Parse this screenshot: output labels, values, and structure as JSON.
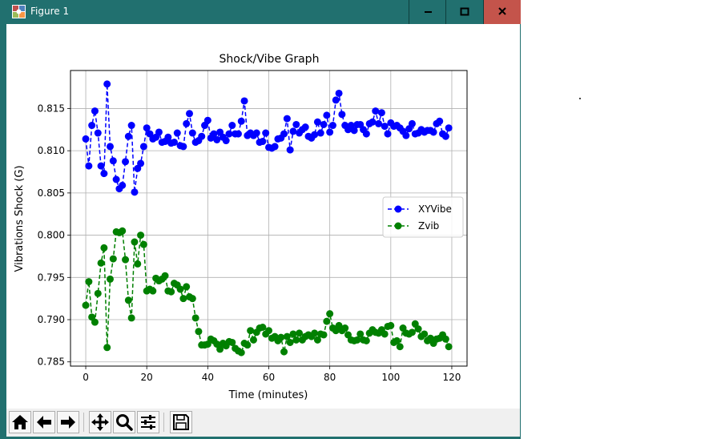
{
  "window": {
    "title": "Figure 1",
    "icon": "matplotlib-figure-icon",
    "controls": [
      "minimize-icon",
      "maximize-icon",
      "close-icon"
    ]
  },
  "toolbar": {
    "buttons": [
      {
        "name": "home-button",
        "icon": "home-icon"
      },
      {
        "name": "back-button",
        "icon": "arrow-left-icon"
      },
      {
        "name": "forward-button",
        "icon": "arrow-right-icon"
      },
      {
        "name": "pan-button",
        "icon": "move-icon"
      },
      {
        "name": "zoom-button",
        "icon": "magnifier-icon"
      },
      {
        "name": "configure-subplots-button",
        "icon": "sliders-icon"
      },
      {
        "name": "save-button",
        "icon": "floppy-disk-icon"
      }
    ]
  },
  "chart_data": {
    "type": "line",
    "title": "Shock/Vibe Graph",
    "xlabel": "Time (minutes)",
    "ylabel": "Vibrations Shock (G)",
    "xlim": [
      -5,
      125
    ],
    "ylim": [
      0.7845,
      0.8195
    ],
    "xticks": [
      "0",
      "20",
      "40",
      "60",
      "80",
      "100",
      "120"
    ],
    "yticks": [
      "0.785",
      "0.790",
      "0.795",
      "0.800",
      "0.805",
      "0.810",
      "0.815"
    ],
    "grid": true,
    "legend": "center-right",
    "x": [
      0,
      1,
      2,
      3,
      4,
      5,
      6,
      7,
      8,
      9,
      10,
      11,
      12,
      13,
      14,
      15,
      16,
      17,
      18,
      19,
      20,
      21,
      22,
      23,
      24,
      25,
      26,
      27,
      28,
      29,
      30,
      31,
      32,
      33,
      34,
      35,
      36,
      37,
      38,
      39,
      40,
      41,
      42,
      43,
      44,
      45,
      46,
      47,
      48,
      49,
      50,
      51,
      52,
      53,
      54,
      55,
      56,
      57,
      58,
      59,
      60,
      61,
      62,
      63,
      64,
      65,
      66,
      67,
      68,
      69,
      70,
      71,
      72,
      73,
      74,
      75,
      76,
      77,
      78,
      79,
      80,
      81,
      82,
      83,
      84,
      85,
      86,
      87,
      88,
      89,
      90,
      91,
      92,
      93,
      94,
      95,
      96,
      97,
      98,
      99,
      100,
      101,
      102,
      103,
      104,
      105,
      106,
      107,
      108,
      109,
      110,
      111,
      112,
      113,
      114,
      115,
      116,
      117,
      118,
      119
    ],
    "series": [
      {
        "name": "XYVibe",
        "color": "#0000ff",
        "marker": "circle",
        "linestyle": "dashed",
        "values": [
          0.8114,
          0.8082,
          0.813,
          0.8147,
          0.8121,
          0.8082,
          0.8073,
          0.8179,
          0.8105,
          0.8088,
          0.8066,
          0.8055,
          0.8059,
          0.8087,
          0.8117,
          0.813,
          0.8051,
          0.8079,
          0.8085,
          0.8105,
          0.8127,
          0.812,
          0.8114,
          0.8116,
          0.8122,
          0.811,
          0.8111,
          0.8116,
          0.8109,
          0.811,
          0.8121,
          0.8106,
          0.8105,
          0.8132,
          0.8144,
          0.8121,
          0.811,
          0.8112,
          0.8117,
          0.813,
          0.8136,
          0.8115,
          0.812,
          0.8113,
          0.8122,
          0.8116,
          0.8112,
          0.812,
          0.813,
          0.812,
          0.812,
          0.8135,
          0.8159,
          0.8118,
          0.8121,
          0.8118,
          0.8121,
          0.811,
          0.8111,
          0.8121,
          0.8104,
          0.8103,
          0.8105,
          0.8114,
          0.8115,
          0.812,
          0.8138,
          0.8101,
          0.8123,
          0.8131,
          0.8121,
          0.8125,
          0.8128,
          0.8117,
          0.8115,
          0.8119,
          0.8134,
          0.8121,
          0.8131,
          0.8142,
          0.8122,
          0.813,
          0.816,
          0.8168,
          0.8143,
          0.813,
          0.8125,
          0.813,
          0.8124,
          0.8131,
          0.8131,
          0.8125,
          0.812,
          0.8132,
          0.8134,
          0.8147,
          0.8132,
          0.8145,
          0.8129,
          0.812,
          0.8133,
          0.8129,
          0.813,
          0.8127,
          0.8123,
          0.8118,
          0.8126,
          0.8132,
          0.812,
          0.8121,
          0.8125,
          0.8122,
          0.8124,
          0.8124,
          0.8122,
          0.8132,
          0.8135,
          0.812,
          0.8117,
          0.8127
        ]
      },
      {
        "name": "Zvib",
        "color": "#008000",
        "marker": "circle",
        "linestyle": "dashed",
        "values": [
          0.7917,
          0.7945,
          0.7903,
          0.7897,
          0.7931,
          0.7967,
          0.7985,
          0.7867,
          0.7948,
          0.7972,
          0.8004,
          0.8003,
          0.8005,
          0.7971,
          0.7923,
          0.7902,
          0.7992,
          0.7966,
          0.8,
          0.7989,
          0.7934,
          0.7936,
          0.7934,
          0.7949,
          0.7946,
          0.7948,
          0.7952,
          0.7934,
          0.7933,
          0.7943,
          0.7941,
          0.7936,
          0.7925,
          0.7939,
          0.7927,
          0.7925,
          0.7902,
          0.7886,
          0.787,
          0.787,
          0.7871,
          0.7877,
          0.7875,
          0.7871,
          0.7865,
          0.7872,
          0.7869,
          0.7874,
          0.7873,
          0.7866,
          0.7863,
          0.7861,
          0.7872,
          0.787,
          0.7887,
          0.7876,
          0.7885,
          0.789,
          0.7891,
          0.7883,
          0.7887,
          0.7878,
          0.788,
          0.7875,
          0.7879,
          0.7862,
          0.788,
          0.7873,
          0.7883,
          0.7876,
          0.7884,
          0.7876,
          0.788,
          0.7882,
          0.788,
          0.7884,
          0.7876,
          0.7883,
          0.7882,
          0.7898,
          0.7907,
          0.789,
          0.7887,
          0.7893,
          0.7887,
          0.789,
          0.7882,
          0.7876,
          0.7875,
          0.7876,
          0.7883,
          0.7876,
          0.7875,
          0.7884,
          0.7888,
          0.7885,
          0.7884,
          0.7888,
          0.7883,
          0.7892,
          0.7893,
          0.7873,
          0.7875,
          0.7868,
          0.789,
          0.7884,
          0.7883,
          0.7885,
          0.7895,
          0.7889,
          0.788,
          0.7883,
          0.7875,
          0.7878,
          0.7872,
          0.7877,
          0.7878,
          0.7882,
          0.7877,
          0.7868
        ]
      }
    ]
  }
}
